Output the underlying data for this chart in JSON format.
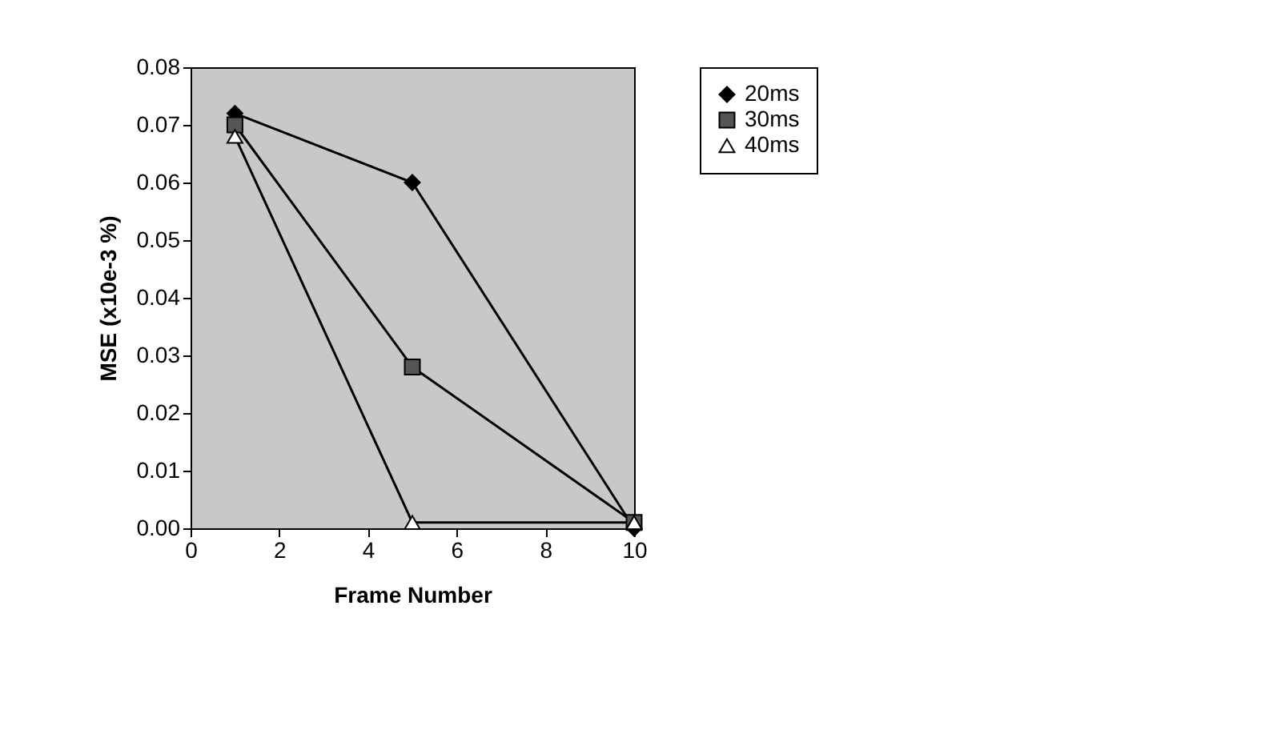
{
  "chart_data": {
    "type": "line",
    "xlabel": "Frame Number",
    "ylabel": "MSE (x10e-3 %)",
    "xlim": [
      0,
      10
    ],
    "xticks": [
      0,
      2,
      4,
      6,
      8,
      10
    ],
    "ylim": [
      0,
      0.08
    ],
    "yticks": [
      {
        "value": 0,
        "label": "0.00"
      },
      {
        "value": 0.01,
        "label": "0.01"
      },
      {
        "value": 0.02,
        "label": "0.02"
      },
      {
        "value": 0.03,
        "label": "0.03"
      },
      {
        "value": 0.04,
        "label": "0.04"
      },
      {
        "value": 0.05,
        "label": "0.05"
      },
      {
        "value": 0.06,
        "label": "0.06"
      },
      {
        "value": 0.07,
        "label": "0.07"
      },
      {
        "value": 0.08,
        "label": "0.08"
      }
    ],
    "grid": false,
    "legend": "right",
    "line_style": "solid",
    "series": [
      {
        "name": "20ms",
        "color": "#000000",
        "marker": "diamond",
        "x": [
          1,
          5,
          10
        ],
        "values": [
          0.072,
          0.06,
          0.0
        ]
      },
      {
        "name": "30ms",
        "color": "#555555",
        "marker": "square",
        "x": [
          1,
          5,
          10
        ],
        "values": [
          0.07,
          0.028,
          0.001
        ]
      },
      {
        "name": "40ms",
        "color": "#ffffff",
        "marker": "triangle",
        "x": [
          1,
          5,
          10
        ],
        "values": [
          0.068,
          0.001,
          0.001
        ]
      }
    ]
  }
}
